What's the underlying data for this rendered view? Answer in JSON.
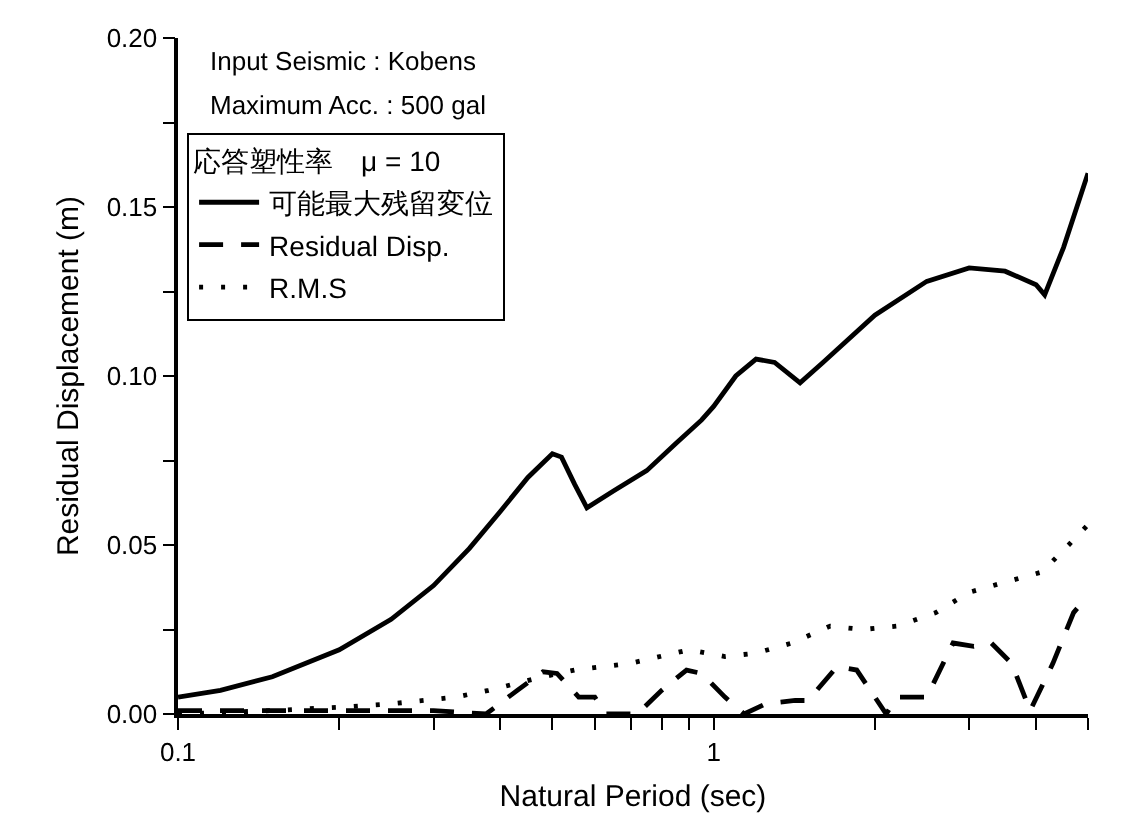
{
  "chart_data": {
    "type": "line",
    "xlabel": "Natural Period (sec)",
    "ylabel": "Residual Displacement (m)",
    "legend_title": "応答塑性率　μ = 10",
    "log": "x",
    "grid": false,
    "legend": "top left",
    "marker": "none",
    "annotations": [
      "Input Seismic : Kobens",
      "Maximum Acc. : 500 gal"
    ],
    "xlim": [
      0.1,
      5
    ],
    "xticks": [
      0.1,
      {
        "value": 0.2,
        "label": null
      },
      {
        "value": 0.3,
        "label": null
      },
      {
        "value": 0.4,
        "label": null
      },
      {
        "value": 0.5,
        "label": null
      },
      {
        "value": 0.6,
        "label": null
      },
      {
        "value": 0.7,
        "label": null
      },
      {
        "value": 0.8,
        "label": null
      },
      {
        "value": 0.9,
        "label": null
      },
      1,
      {
        "value": 2,
        "label": null
      },
      {
        "value": 3,
        "label": null
      },
      {
        "value": 4,
        "label": null
      },
      {
        "value": 5,
        "label": null
      }
    ],
    "ylim": [
      0,
      0.2
    ],
    "yticks": [
      {
        "value": 0,
        "label": "0.00"
      },
      {
        "value": 0.025,
        "label": null
      },
      {
        "value": 0.05,
        "label": "0.05"
      },
      {
        "value": 0.075,
        "label": null
      },
      {
        "value": 0.1,
        "label": "0.10"
      },
      {
        "value": 0.125,
        "label": null
      },
      {
        "value": 0.15,
        "label": "0.15"
      },
      {
        "value": 0.175,
        "label": null
      },
      {
        "value": 0.2,
        "label": "0.20"
      }
    ],
    "series": [
      {
        "name": "可能最大残留変位",
        "color": "#000000",
        "line_style": "solid",
        "x": [
          0.1,
          0.12,
          0.15,
          0.2,
          0.25,
          0.3,
          0.35,
          0.4,
          0.45,
          0.5,
          0.52,
          0.55,
          0.58,
          0.65,
          0.75,
          0.85,
          0.95,
          1.0,
          1.1,
          1.2,
          1.3,
          1.45,
          1.6,
          2.0,
          2.5,
          3.0,
          3.5,
          4.0,
          4.15,
          4.5,
          5.0
        ],
        "values": [
          0.005,
          0.007,
          0.011,
          0.019,
          0.028,
          0.038,
          0.049,
          0.06,
          0.07,
          0.077,
          0.076,
          0.068,
          0.061,
          0.066,
          0.072,
          0.08,
          0.087,
          0.091,
          0.1,
          0.105,
          0.104,
          0.098,
          0.104,
          0.118,
          0.128,
          0.132,
          0.131,
          0.127,
          0.124,
          0.138,
          0.16
        ]
      },
      {
        "name": "Residual Disp.",
        "color": "#000000",
        "line_style": "dashed",
        "x": [
          0.1,
          0.2,
          0.3,
          0.376,
          0.43,
          0.48,
          0.51,
          0.56,
          0.6,
          0.63,
          0.72,
          0.8,
          0.89,
          0.95,
          1.05,
          1.14,
          1.25,
          1.42,
          1.5,
          1.7,
          1.85,
          2.1,
          2.2,
          2.5,
          2.8,
          3.06,
          3.3,
          3.6,
          3.9,
          4.3,
          4.7,
          5.0
        ],
        "values": [
          0.001,
          0.001,
          0.001,
          0,
          0.007,
          0.0125,
          0.012,
          0.005,
          0.005,
          0,
          0,
          0.007,
          0.013,
          0.012,
          0.005,
          0,
          0.003,
          0.004,
          0.004,
          0.014,
          0.013,
          0,
          0.005,
          0.005,
          0.021,
          0.02,
          0.021,
          0.015,
          0.001,
          0.015,
          0.03,
          0.035
        ]
      },
      {
        "name": "R.M.S",
        "color": "#000000",
        "line_style": "dotted",
        "x": [
          0.1,
          0.15,
          0.2,
          0.25,
          0.33,
          0.38,
          0.48,
          0.55,
          0.7,
          0.9,
          1.05,
          1.2,
          1.4,
          1.65,
          1.9,
          2.2,
          2.6,
          3.0,
          3.5,
          4.1,
          4.6,
          5.0
        ],
        "values": [
          0,
          0.001,
          0.002,
          0.003,
          0.005,
          0.007,
          0.011,
          0.013,
          0.015,
          0.019,
          0.017,
          0.018,
          0.021,
          0.026,
          0.025,
          0.026,
          0.03,
          0.036,
          0.039,
          0.042,
          0.05,
          0.056
        ]
      }
    ]
  }
}
